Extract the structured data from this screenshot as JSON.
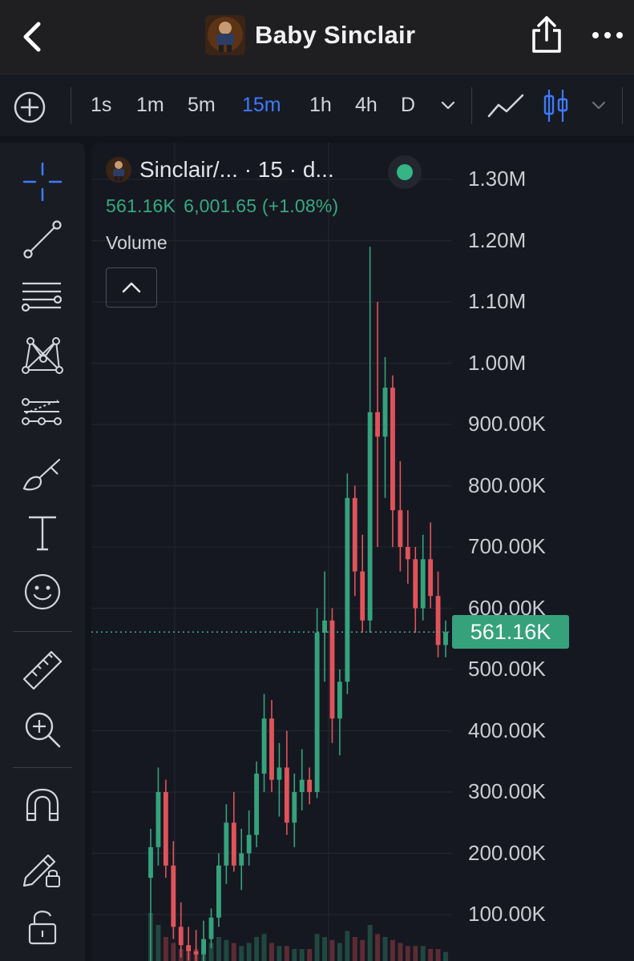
{
  "header": {
    "title": "Baby Sinclair"
  },
  "toolbar": {
    "intervals": [
      "1s",
      "1m",
      "5m",
      "15m",
      "1h",
      "4h",
      "D"
    ],
    "active_interval": "15m"
  },
  "legend": {
    "symbol": "Sinclair/...  · 15 · d...",
    "price": "561.16K",
    "change": "6,001.65 (+1.08%)",
    "volume_label": "Volume"
  },
  "price_axis": {
    "labels": [
      "1.30M",
      "1.20M",
      "1.10M",
      "1.00M",
      "900.00K",
      "800.00K",
      "700.00K",
      "600.00K",
      "500.00K",
      "400.00K",
      "300.00K",
      "200.00K",
      "100.00K"
    ],
    "current_price_label": "561.16K"
  },
  "colors": {
    "up": "#35a27c",
    "down": "#e0535a",
    "active": "#3d7bff",
    "background": "#161821"
  },
  "chart_data": {
    "type": "candlestick",
    "ylim": [
      0,
      1350000
    ],
    "current_price": 561160,
    "candles": [
      {
        "o": 160000,
        "h": 240000,
        "l": 20000,
        "c": 210000
      },
      {
        "o": 210000,
        "h": 340000,
        "l": 180000,
        "c": 300000
      },
      {
        "o": 300000,
        "h": 320000,
        "l": 160000,
        "c": 180000
      },
      {
        "o": 180000,
        "h": 220000,
        "l": 60000,
        "c": 80000
      },
      {
        "o": 80000,
        "h": 120000,
        "l": 30000,
        "c": 50000
      },
      {
        "o": 50000,
        "h": 80000,
        "l": 25000,
        "c": 40000
      },
      {
        "o": 40000,
        "h": 75000,
        "l": 20000,
        "c": 35000
      },
      {
        "o": 35000,
        "h": 90000,
        "l": 20000,
        "c": 60000
      },
      {
        "o": 60000,
        "h": 110000,
        "l": 45000,
        "c": 95000
      },
      {
        "o": 95000,
        "h": 200000,
        "l": 80000,
        "c": 180000
      },
      {
        "o": 180000,
        "h": 280000,
        "l": 150000,
        "c": 250000
      },
      {
        "o": 250000,
        "h": 300000,
        "l": 170000,
        "c": 180000
      },
      {
        "o": 180000,
        "h": 240000,
        "l": 140000,
        "c": 200000
      },
      {
        "o": 200000,
        "h": 270000,
        "l": 180000,
        "c": 230000
      },
      {
        "o": 230000,
        "h": 350000,
        "l": 210000,
        "c": 330000
      },
      {
        "o": 330000,
        "h": 460000,
        "l": 300000,
        "c": 420000
      },
      {
        "o": 420000,
        "h": 450000,
        "l": 300000,
        "c": 320000
      },
      {
        "o": 320000,
        "h": 380000,
        "l": 260000,
        "c": 340000
      },
      {
        "o": 340000,
        "h": 400000,
        "l": 230000,
        "c": 250000
      },
      {
        "o": 250000,
        "h": 330000,
        "l": 210000,
        "c": 300000
      },
      {
        "o": 300000,
        "h": 370000,
        "l": 270000,
        "c": 320000
      },
      {
        "o": 320000,
        "h": 340000,
        "l": 280000,
        "c": 300000
      },
      {
        "o": 300000,
        "h": 600000,
        "l": 290000,
        "c": 560000
      },
      {
        "o": 560000,
        "h": 660000,
        "l": 480000,
        "c": 580000
      },
      {
        "o": 580000,
        "h": 600000,
        "l": 380000,
        "c": 420000
      },
      {
        "o": 420000,
        "h": 500000,
        "l": 360000,
        "c": 480000
      },
      {
        "o": 480000,
        "h": 820000,
        "l": 460000,
        "c": 780000
      },
      {
        "o": 780000,
        "h": 800000,
        "l": 620000,
        "c": 660000
      },
      {
        "o": 660000,
        "h": 720000,
        "l": 560000,
        "c": 580000
      },
      {
        "o": 580000,
        "h": 1190000,
        "l": 560000,
        "c": 920000
      },
      {
        "o": 920000,
        "h": 1100000,
        "l": 700000,
        "c": 880000
      },
      {
        "o": 880000,
        "h": 1010000,
        "l": 780000,
        "c": 960000
      },
      {
        "o": 960000,
        "h": 980000,
        "l": 700000,
        "c": 760000
      },
      {
        "o": 760000,
        "h": 840000,
        "l": 660000,
        "c": 700000
      },
      {
        "o": 700000,
        "h": 760000,
        "l": 640000,
        "c": 680000
      },
      {
        "o": 680000,
        "h": 700000,
        "l": 560000,
        "c": 600000
      },
      {
        "o": 600000,
        "h": 720000,
        "l": 580000,
        "c": 680000
      },
      {
        "o": 680000,
        "h": 740000,
        "l": 600000,
        "c": 620000
      },
      {
        "o": 620000,
        "h": 660000,
        "l": 520000,
        "c": 540000
      },
      {
        "o": 540000,
        "h": 580000,
        "l": 520000,
        "c": 561160
      }
    ],
    "volumes": [
      80000,
      60000,
      40000,
      30000,
      20000,
      15000,
      20000,
      25000,
      30000,
      40000,
      35000,
      30000,
      25000,
      30000,
      40000,
      45000,
      30000,
      25000,
      25000,
      20000,
      20000,
      20000,
      45000,
      40000,
      35000,
      30000,
      50000,
      40000,
      35000,
      60000,
      45000,
      40000,
      35000,
      30000,
      25000,
      25000,
      25000,
      20000,
      20000,
      15000
    ]
  }
}
